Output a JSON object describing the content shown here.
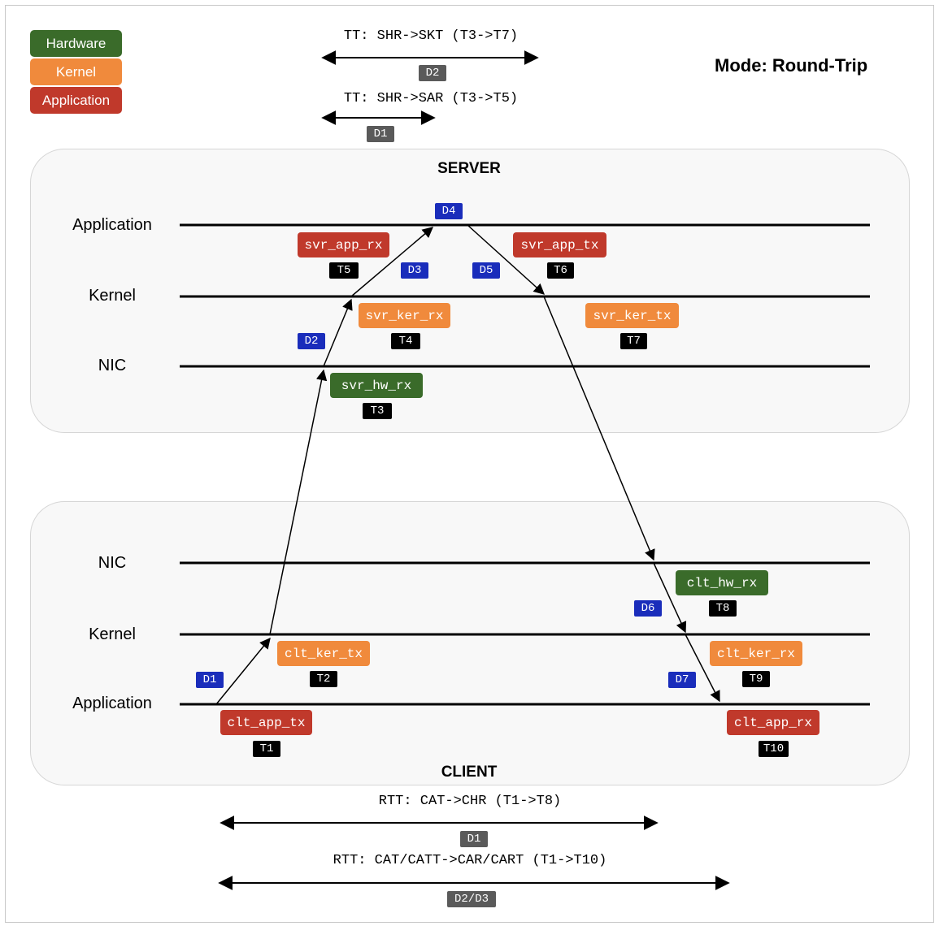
{
  "colors": {
    "hardware": "#3a6b2a",
    "kernel": "#f08a3c",
    "application": "#c0392b",
    "timestamp": "#000000",
    "delay_tag": "#1a2dbb",
    "measure_tag": "#5a5a5a"
  },
  "legend": {
    "hardware": "Hardware",
    "kernel": "Kernel",
    "application": "Application"
  },
  "mode": "Mode: Round-Trip",
  "server": {
    "title": "SERVER",
    "layers": {
      "application": "Application",
      "kernel": "Kernel",
      "nic": "NIC"
    },
    "events": {
      "svr_app_rx": "svr_app_rx",
      "svr_app_tx": "svr_app_tx",
      "svr_ker_rx": "svr_ker_rx",
      "svr_ker_tx": "svr_ker_tx",
      "svr_hw_rx": "svr_hw_rx"
    },
    "timestamps": {
      "t3": "T3",
      "t4": "T4",
      "t5": "T5",
      "t6": "T6",
      "t7": "T7"
    },
    "delays": {
      "d2": "D2",
      "d3": "D3",
      "d4": "D4",
      "d5": "D5"
    }
  },
  "client": {
    "title": "CLIENT",
    "layers": {
      "nic": "NIC",
      "kernel": "Kernel",
      "application": "Application"
    },
    "events": {
      "clt_hw_rx": "clt_hw_rx",
      "clt_ker_tx": "clt_ker_tx",
      "clt_ker_rx": "clt_ker_rx",
      "clt_app_tx": "clt_app_tx",
      "clt_app_rx": "clt_app_rx"
    },
    "timestamps": {
      "t1": "T1",
      "t2": "T2",
      "t8": "T8",
      "t9": "T9",
      "t10": "T10"
    },
    "delays": {
      "d1": "D1",
      "d6": "D6",
      "d7": "D7"
    }
  },
  "measures": {
    "tt_skt": {
      "label": "TT: SHR->SKT (T3->T7)",
      "tag": "D2"
    },
    "tt_sar": {
      "label": "TT: SHR->SAR (T3->T5)",
      "tag": "D1"
    },
    "rtt_chr": {
      "label": "RTT: CAT->CHR (T1->T8)",
      "tag": "D1"
    },
    "rtt_car": {
      "label": "RTT: CAT/CATT->CAR/CART (T1->T10)",
      "tag": "D2/D3"
    }
  }
}
